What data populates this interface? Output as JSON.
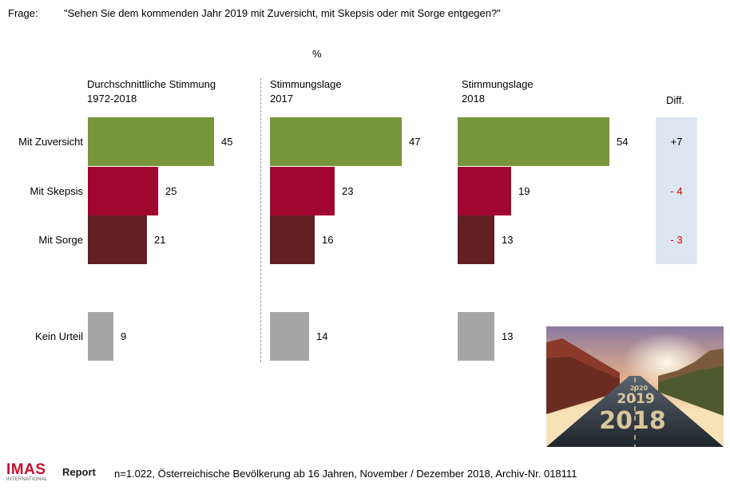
{
  "header": {
    "frage_label": "Frage:",
    "question": "\"Sehen Sie dem kommenden Jahr 2019 mit Zuversicht, mit Skepsis oder mit Sorge entgegen?\""
  },
  "unit": "%",
  "colors": {
    "zuversicht": "#77963a",
    "skepsis": "#a1062f",
    "sorge": "#622023",
    "kein_urteil": "#a6a6a6",
    "diff_negative": "#e00000",
    "diff_box": "#dce6f1"
  },
  "chart_data": {
    "type": "bar",
    "orientation": "horizontal",
    "categories": [
      "Mit Zuversicht",
      "Mit Skepsis",
      "Mit Sorge",
      "Kein Urteil"
    ],
    "series": [
      {
        "name": "Durchschnittliche Stimmung\n1972-2018",
        "values": [
          45,
          25,
          21,
          9
        ]
      },
      {
        "name": "Stimmungslage\n2017",
        "values": [
          47,
          23,
          16,
          14
        ]
      },
      {
        "name": "Stimmungslage\n2018",
        "values": [
          54,
          19,
          13,
          13
        ]
      }
    ],
    "diff": {
      "title": "Diff.",
      "values": [
        "+7",
        "- 4",
        "- 3"
      ]
    }
  },
  "footer": {
    "note": "n=1.022, Österreichische Bevölkerung ab 16 Jahren, November / Dezember 2018, Archiv-Nr. 018111"
  },
  "logo": {
    "main": "IMAS",
    "report": "Report",
    "sub": "INTERNATIONAL"
  },
  "photo": {
    "road_text_near": "2018",
    "road_text_mid": "2019",
    "road_text_far": "2020"
  }
}
